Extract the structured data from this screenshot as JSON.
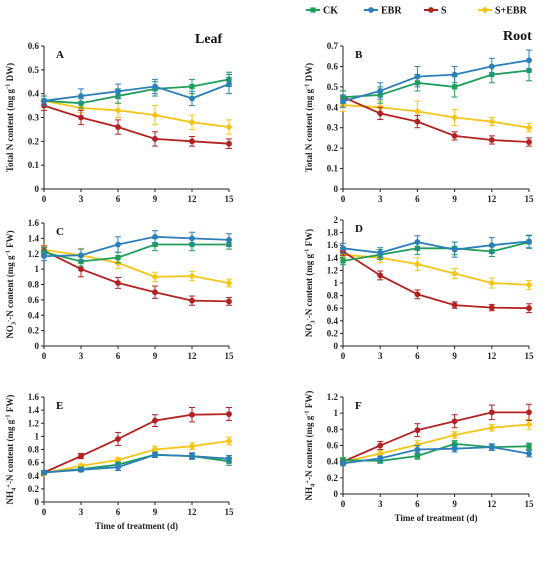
{
  "figure": {
    "organ_labels": {
      "leaf": "Leaf",
      "root": "Root"
    }
  },
  "legend": [
    {
      "name": "CK",
      "color": "#1f9e5b",
      "marker": "square"
    },
    {
      "name": "EBR",
      "color": "#2c7fb8",
      "marker": "circle"
    },
    {
      "name": "S",
      "color": "#b22222",
      "marker": "circle"
    },
    {
      "name": "S+EBR",
      "color": "#f5c518",
      "marker": "diamond"
    }
  ],
  "chart_data": [
    {
      "panel": "A",
      "type": "line",
      "xlabel": "",
      "ylabel_parts": [
        "Total N content (mg g",
        "-1",
        " DW)"
      ],
      "x": [
        0,
        3,
        6,
        9,
        12,
        15
      ],
      "xlim": [
        0,
        15
      ],
      "xticks": [
        "0",
        "3",
        "6",
        "9",
        "12",
        "15"
      ],
      "ylim": [
        0,
        0.6
      ],
      "yticks": [
        "0",
        "0.1",
        "0.2",
        "0.3",
        "0.4",
        "0.5",
        "0.6"
      ],
      "series": [
        {
          "name": "CK",
          "values": [
            0.37,
            0.36,
            0.39,
            0.42,
            0.43,
            0.46
          ],
          "errors": [
            0.02,
            0.02,
            0.03,
            0.03,
            0.03,
            0.03
          ]
        },
        {
          "name": "EBR",
          "values": [
            0.37,
            0.39,
            0.41,
            0.43,
            0.38,
            0.44
          ],
          "errors": [
            0.02,
            0.03,
            0.03,
            0.03,
            0.03,
            0.04
          ]
        },
        {
          "name": "S",
          "values": [
            0.35,
            0.3,
            0.26,
            0.21,
            0.2,
            0.19
          ],
          "errors": [
            0.02,
            0.03,
            0.03,
            0.03,
            0.02,
            0.02
          ]
        },
        {
          "name": "S+EBR",
          "values": [
            0.37,
            0.34,
            0.33,
            0.31,
            0.28,
            0.26
          ],
          "errors": [
            0.02,
            0.02,
            0.03,
            0.04,
            0.03,
            0.03
          ]
        }
      ]
    },
    {
      "panel": "B",
      "type": "line",
      "xlabel": "",
      "ylabel_parts": [
        "Total N content (mg g",
        "-1",
        " DW)"
      ],
      "x": [
        0,
        3,
        6,
        9,
        12,
        15
      ],
      "xlim": [
        0,
        15
      ],
      "xticks": [
        "0",
        "3",
        "6",
        "9",
        "12",
        "15"
      ],
      "ylim": [
        0,
        0.7
      ],
      "yticks": [
        "0",
        "0.1",
        "0.2",
        "0.3",
        "0.4",
        "0.5",
        "0.6",
        "0.7"
      ],
      "series": [
        {
          "name": "CK",
          "values": [
            0.45,
            0.46,
            0.52,
            0.5,
            0.56,
            0.58
          ],
          "errors": [
            0.03,
            0.04,
            0.04,
            0.05,
            0.04,
            0.05
          ]
        },
        {
          "name": "EBR",
          "values": [
            0.43,
            0.48,
            0.55,
            0.56,
            0.6,
            0.63
          ],
          "errors": [
            0.03,
            0.04,
            0.05,
            0.04,
            0.04,
            0.05
          ]
        },
        {
          "name": "S",
          "values": [
            0.45,
            0.37,
            0.33,
            0.26,
            0.24,
            0.23
          ],
          "errors": [
            0.03,
            0.03,
            0.03,
            0.02,
            0.02,
            0.02
          ]
        },
        {
          "name": "S+EBR",
          "values": [
            0.41,
            0.4,
            0.38,
            0.35,
            0.33,
            0.3
          ],
          "errors": [
            0.03,
            0.03,
            0.05,
            0.04,
            0.02,
            0.02
          ]
        }
      ]
    },
    {
      "panel": "C",
      "type": "line",
      "xlabel": "",
      "ylabel_parts": [
        "NO",
        "3",
        "-",
        "-N content (mg g",
        "-1",
        " FW)"
      ],
      "x": [
        0,
        3,
        6,
        9,
        12,
        15
      ],
      "xlim": [
        0,
        15
      ],
      "xticks": [
        "0",
        "3",
        "6",
        "9",
        "12",
        "15"
      ],
      "ylim": [
        0,
        1.6
      ],
      "yticks": [
        "0",
        "0.2",
        "0.4",
        "0.6",
        "0.8",
        "1",
        "1.2",
        "1.4",
        "1.6"
      ],
      "series": [
        {
          "name": "CK",
          "values": [
            1.22,
            1.1,
            1.15,
            1.32,
            1.32,
            1.32
          ],
          "errors": [
            0.06,
            0.06,
            0.07,
            0.08,
            0.08,
            0.06
          ]
        },
        {
          "name": "EBR",
          "values": [
            1.17,
            1.18,
            1.32,
            1.42,
            1.4,
            1.38
          ],
          "errors": [
            0.06,
            0.08,
            0.1,
            0.08,
            0.08,
            0.08
          ]
        },
        {
          "name": "S",
          "values": [
            1.24,
            1.0,
            0.82,
            0.7,
            0.59,
            0.58
          ],
          "errors": [
            0.06,
            0.1,
            0.07,
            0.08,
            0.06,
            0.05
          ]
        },
        {
          "name": "S+EBR",
          "values": [
            1.25,
            1.18,
            1.08,
            0.9,
            0.91,
            0.82
          ],
          "errors": [
            0.06,
            0.09,
            0.07,
            0.06,
            0.06,
            0.05
          ]
        }
      ]
    },
    {
      "panel": "D",
      "type": "line",
      "xlabel": "",
      "ylabel_parts": [
        "NO",
        "3",
        "-",
        "-N content (mg g",
        "-1",
        " FW)"
      ],
      "x": [
        0,
        3,
        6,
        9,
        12,
        15
      ],
      "xlim": [
        0,
        15
      ],
      "xticks": [
        "0",
        "3",
        "6",
        "9",
        "12",
        "15"
      ],
      "ylim": [
        0,
        2
      ],
      "yticks": [
        "0",
        "0.2",
        "0.4",
        "0.6",
        "0.8",
        "1",
        "1.2",
        "1.4",
        "1.6",
        "1.8",
        "2"
      ],
      "series": [
        {
          "name": "CK",
          "values": [
            1.35,
            1.45,
            1.55,
            1.55,
            1.5,
            1.65
          ],
          "errors": [
            0.06,
            0.08,
            0.1,
            0.1,
            0.08,
            0.1
          ]
        },
        {
          "name": "EBR",
          "values": [
            1.55,
            1.48,
            1.65,
            1.53,
            1.6,
            1.66
          ],
          "errors": [
            0.08,
            0.08,
            0.1,
            0.12,
            0.12,
            0.1
          ]
        },
        {
          "name": "S",
          "values": [
            1.5,
            1.12,
            0.82,
            0.65,
            0.61,
            0.6
          ],
          "errors": [
            0.06,
            0.07,
            0.07,
            0.05,
            0.05,
            0.07
          ]
        },
        {
          "name": "S+EBR",
          "values": [
            1.45,
            1.4,
            1.3,
            1.15,
            1.0,
            0.97
          ],
          "errors": [
            0.06,
            0.08,
            0.1,
            0.08,
            0.08,
            0.07
          ]
        }
      ]
    },
    {
      "panel": "E",
      "type": "line",
      "xlabel": "Time of treatment (d)",
      "ylabel_parts": [
        "NH",
        "4",
        "+",
        "-N content (mg g",
        "-1",
        " FW)"
      ],
      "x": [
        0,
        3,
        6,
        9,
        12,
        15
      ],
      "xlim": [
        0,
        15
      ],
      "xticks": [
        "0",
        "3",
        "6",
        "9",
        "12",
        "15"
      ],
      "ylim": [
        0,
        1.6
      ],
      "yticks": [
        "0",
        "0.2",
        "0.4",
        "0.6",
        "0.8",
        "1",
        "1.2",
        "1.4",
        "1.6"
      ],
      "series": [
        {
          "name": "CK",
          "values": [
            0.45,
            0.5,
            0.57,
            0.72,
            0.7,
            0.62
          ],
          "errors": [
            0.03,
            0.03,
            0.04,
            0.04,
            0.04,
            0.06
          ]
        },
        {
          "name": "EBR",
          "values": [
            0.45,
            0.49,
            0.53,
            0.72,
            0.7,
            0.66
          ],
          "errors": [
            0.03,
            0.03,
            0.05,
            0.04,
            0.05,
            0.05
          ]
        },
        {
          "name": "S",
          "values": [
            0.45,
            0.7,
            0.96,
            1.24,
            1.33,
            1.34
          ],
          "errors": [
            0.03,
            0.04,
            0.1,
            0.09,
            0.11,
            0.1
          ]
        },
        {
          "name": "S+EBR",
          "values": [
            0.44,
            0.55,
            0.64,
            0.8,
            0.85,
            0.93
          ],
          "errors": [
            0.03,
            0.03,
            0.04,
            0.05,
            0.05,
            0.06
          ]
        }
      ]
    },
    {
      "panel": "F",
      "type": "line",
      "xlabel": "Time of treatment (d)",
      "ylabel_parts": [
        "NH",
        "4",
        "+",
        "-N content (mg g",
        "-1",
        " FW)"
      ],
      "x": [
        0,
        3,
        6,
        9,
        12,
        15
      ],
      "xlim": [
        0,
        15
      ],
      "xticks": [
        "0",
        "3",
        "6",
        "9",
        "12",
        "15"
      ],
      "ylim": [
        0,
        1.2
      ],
      "yticks": [
        "0",
        "0.2",
        "0.4",
        "0.6",
        "0.8",
        "1",
        "1.2"
      ],
      "series": [
        {
          "name": "CK",
          "values": [
            0.42,
            0.41,
            0.47,
            0.62,
            0.58,
            0.59
          ],
          "errors": [
            0.03,
            0.03,
            0.04,
            0.04,
            0.04,
            0.04
          ]
        },
        {
          "name": "EBR",
          "values": [
            0.38,
            0.44,
            0.55,
            0.56,
            0.58,
            0.5
          ],
          "errors": [
            0.03,
            0.03,
            0.05,
            0.04,
            0.04,
            0.04
          ]
        },
        {
          "name": "S",
          "values": [
            0.4,
            0.6,
            0.79,
            0.9,
            1.01,
            1.01
          ],
          "errors": [
            0.03,
            0.05,
            0.08,
            0.08,
            0.09,
            0.1
          ]
        },
        {
          "name": "S+EBR",
          "values": [
            0.4,
            0.5,
            0.61,
            0.73,
            0.82,
            0.86
          ],
          "errors": [
            0.03,
            0.04,
            0.05,
            0.04,
            0.04,
            0.06
          ]
        }
      ]
    }
  ]
}
